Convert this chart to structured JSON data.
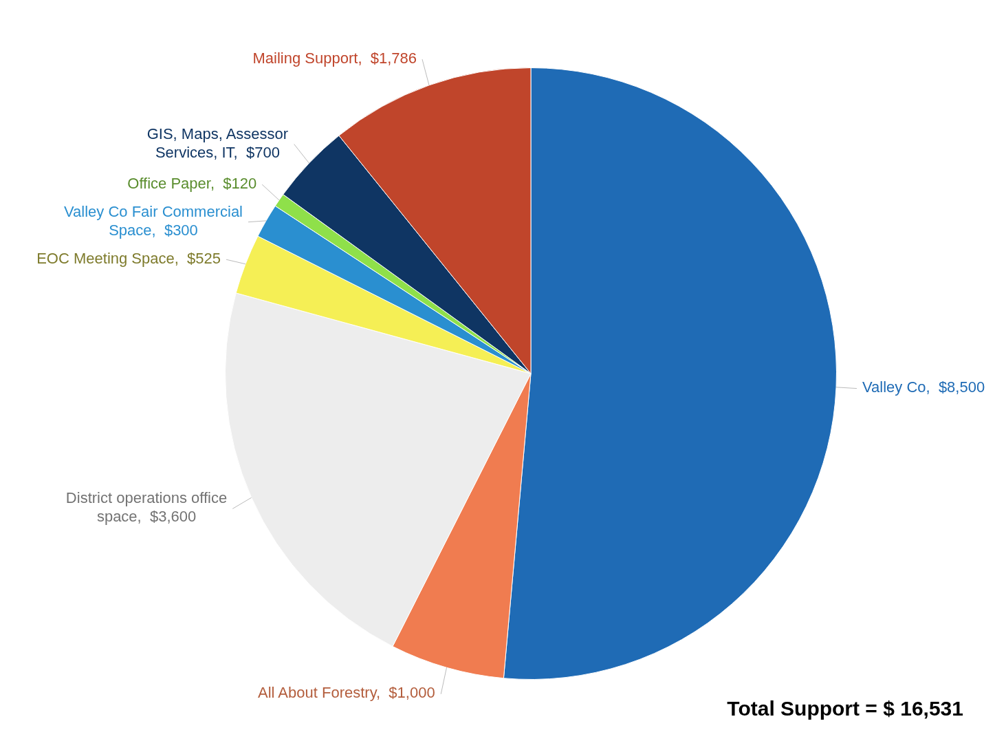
{
  "chart_data": {
    "type": "pie",
    "categories": [
      "Valley Co",
      "All About Forestry",
      "District operations office space",
      "EOC Meeting Space",
      "Valley Co Fair Commercial Space",
      "Office Paper",
      "GIS, Maps, Assessor Services, IT",
      "Mailing Support"
    ],
    "values": [
      8500,
      1000,
      3600,
      525,
      300,
      120,
      700,
      1786
    ],
    "value_labels": [
      "$8,500",
      "$1,000",
      "$3,600",
      "$525",
      "$300",
      "$120",
      "$700",
      "$1,786"
    ],
    "colors": [
      "#1f6bb5",
      "#f07c50",
      "#ededed",
      "#f5ef55",
      "#2a8fd0",
      "#8fe04a",
      "#0f3563",
      "#c0452b"
    ],
    "legend": false,
    "annotations": [
      "Total Support =  $ 16,531"
    ]
  }
}
